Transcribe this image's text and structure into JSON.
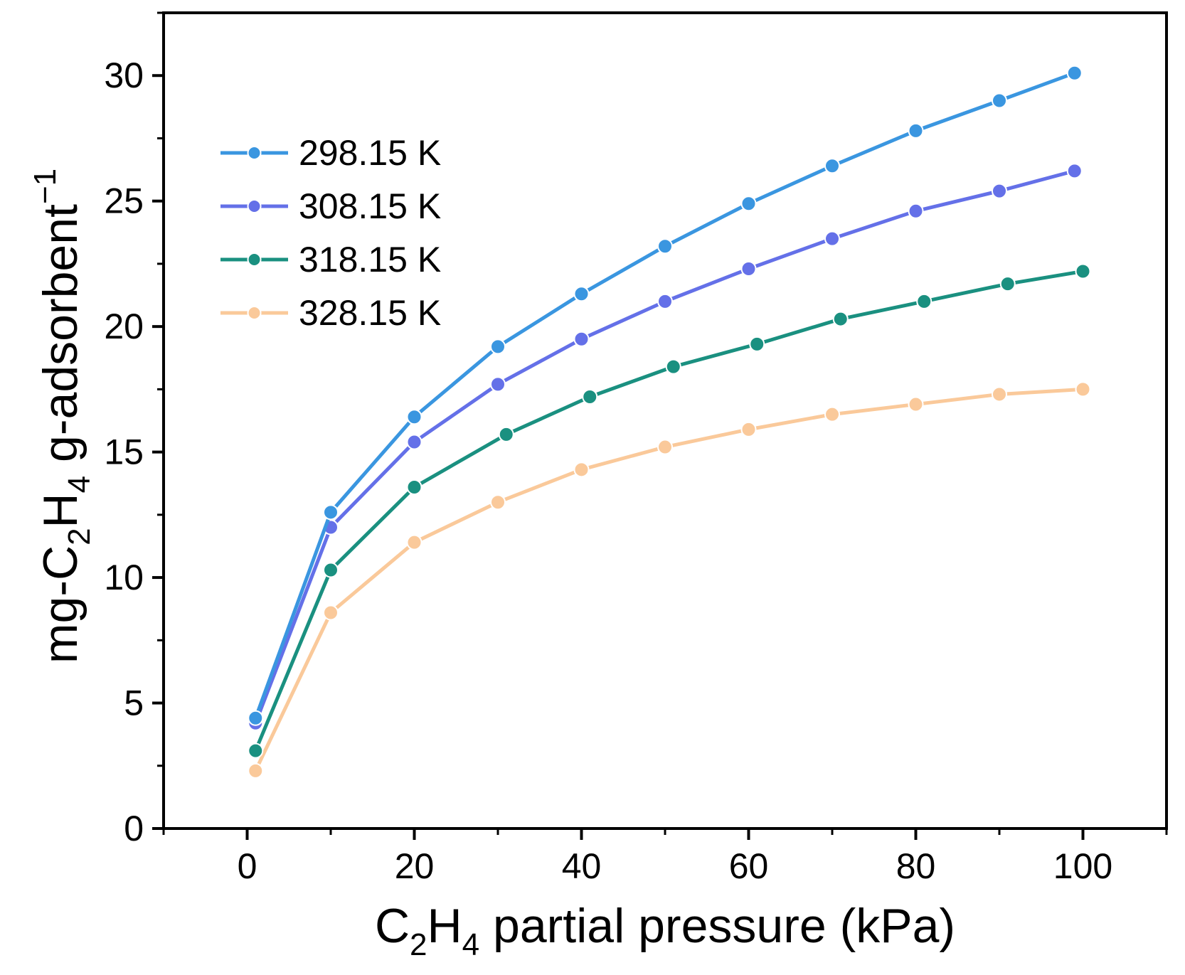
{
  "chart_data": {
    "type": "line",
    "xlabel": {
      "main": "C",
      "sub": "2",
      "main2": "H",
      "sub2": "4",
      "rest": " partial pressure (kPa)"
    },
    "ylabel": {
      "p1": "mg-C",
      "sub1": "2",
      "p2": "H",
      "sub2": "4",
      "p3": " g-adsorbent",
      "sup": "−1"
    },
    "xlim": [
      -10,
      110
    ],
    "ylim": [
      0,
      32.5
    ],
    "xticks": [
      0,
      20,
      40,
      60,
      80,
      100
    ],
    "yticks": [
      0,
      5,
      10,
      15,
      20,
      25,
      30
    ],
    "xtick_labels": [
      "0",
      "20",
      "40",
      "60",
      "80",
      "100"
    ],
    "ytick_labels": [
      "0",
      "5",
      "10",
      "15",
      "20",
      "25",
      "30"
    ],
    "legend_position": "upper-left",
    "series": [
      {
        "name": "298.15 K",
        "color": "#3A96E0",
        "x": [
          1,
          10,
          20,
          30,
          40,
          50,
          60,
          70,
          80,
          90,
          99
        ],
        "y": [
          4.4,
          12.6,
          16.4,
          19.2,
          21.3,
          23.2,
          24.9,
          26.4,
          27.8,
          29.0,
          30.1
        ]
      },
      {
        "name": "308.15 K",
        "color": "#6470E8",
        "x": [
          1,
          10,
          20,
          30,
          40,
          50,
          60,
          70,
          80,
          90,
          99
        ],
        "y": [
          4.2,
          12.0,
          15.4,
          17.7,
          19.5,
          21.0,
          22.3,
          23.5,
          24.6,
          25.4,
          26.2
        ]
      },
      {
        "name": "318.15 K",
        "color": "#1A9080",
        "x": [
          1,
          10,
          20,
          31,
          41,
          51,
          61,
          71,
          81,
          91,
          100
        ],
        "y": [
          3.1,
          10.3,
          13.6,
          15.7,
          17.2,
          18.4,
          19.3,
          20.3,
          21.0,
          21.7,
          22.2
        ]
      },
      {
        "name": "328.15 K",
        "color": "#FAC99A",
        "x": [
          1,
          10,
          20,
          30,
          40,
          50,
          60,
          70,
          80,
          90,
          100
        ],
        "y": [
          2.3,
          8.6,
          11.4,
          13.0,
          14.3,
          15.2,
          15.9,
          16.5,
          16.9,
          17.3,
          17.5
        ]
      }
    ]
  }
}
